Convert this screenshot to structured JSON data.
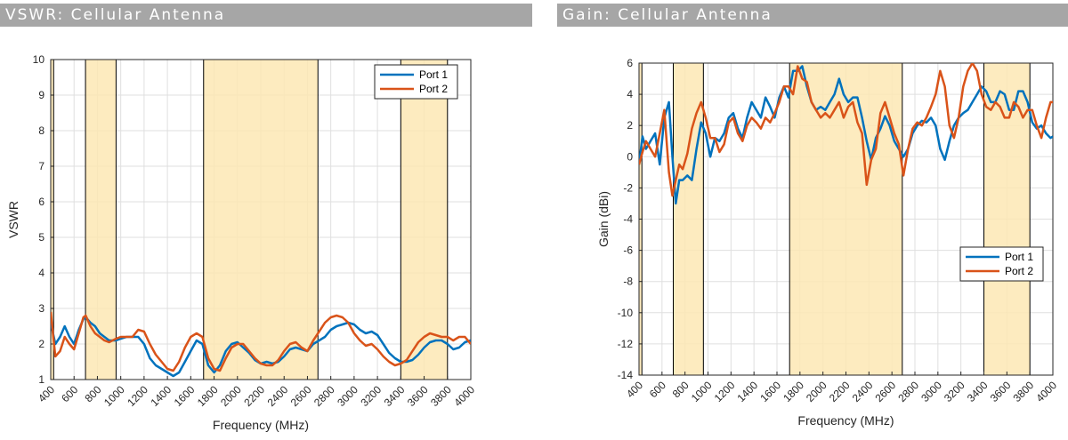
{
  "headers": {
    "left": "VSWR: Cellular Antenna",
    "right": "Gain: Cellular Antenna"
  },
  "colors": {
    "band_fill": "#fde8b4",
    "port1": "#0072bd",
    "port2": "#d95319",
    "grid": "#dfdfdf",
    "header_bg": "#a6a6a6"
  },
  "chart_data": [
    {
      "type": "line",
      "title": "VSWR: Cellular Antenna",
      "xlabel": "Frequency (MHz)",
      "ylabel": "VSWR",
      "xlim": [
        400,
        4000
      ],
      "ylim": [
        1,
        10
      ],
      "xticks": [
        400,
        600,
        800,
        1000,
        1200,
        1400,
        1600,
        1800,
        2000,
        2200,
        2400,
        2600,
        2800,
        3000,
        3200,
        3400,
        3600,
        3800,
        4000
      ],
      "yticks": [
        1,
        2,
        3,
        4,
        5,
        6,
        7,
        8,
        9,
        10
      ],
      "grid": true,
      "legend": "top-right",
      "bands": [
        [
          400,
          425
        ],
        [
          698,
          960
        ],
        [
          1710,
          2690
        ],
        [
          3400,
          3800
        ]
      ],
      "series": [
        {
          "name": "Port 1",
          "x": [
            400,
            440,
            480,
            520,
            560,
            600,
            640,
            680,
            700,
            740,
            780,
            820,
            860,
            900,
            960,
            1000,
            1050,
            1100,
            1150,
            1200,
            1250,
            1300,
            1350,
            1400,
            1450,
            1500,
            1550,
            1600,
            1650,
            1700,
            1750,
            1800,
            1850,
            1900,
            1950,
            2000,
            2050,
            2100,
            2150,
            2200,
            2250,
            2300,
            2350,
            2400,
            2450,
            2500,
            2550,
            2600,
            2650,
            2700,
            2750,
            2800,
            2850,
            2900,
            2950,
            3000,
            3050,
            3100,
            3150,
            3200,
            3250,
            3300,
            3350,
            3400,
            3450,
            3500,
            3550,
            3600,
            3650,
            3700,
            3750,
            3800,
            3850,
            3900,
            3950,
            4000
          ],
          "y": [
            2.6,
            2.0,
            2.2,
            2.5,
            2.2,
            2.0,
            2.4,
            2.7,
            2.75,
            2.6,
            2.5,
            2.3,
            2.2,
            2.1,
            2.1,
            2.15,
            2.2,
            2.2,
            2.2,
            2.0,
            1.6,
            1.4,
            1.3,
            1.2,
            1.1,
            1.2,
            1.5,
            1.8,
            2.1,
            2.0,
            1.4,
            1.2,
            1.4,
            1.8,
            2.0,
            2.05,
            1.9,
            1.75,
            1.55,
            1.45,
            1.5,
            1.45,
            1.5,
            1.65,
            1.85,
            1.9,
            1.85,
            1.8,
            2.0,
            2.1,
            2.2,
            2.4,
            2.5,
            2.55,
            2.6,
            2.55,
            2.4,
            2.3,
            2.35,
            2.25,
            2.0,
            1.75,
            1.6,
            1.5,
            1.5,
            1.55,
            1.7,
            1.9,
            2.05,
            2.1,
            2.1,
            2.0,
            1.85,
            1.9,
            2.05,
            2.1
          ]
        },
        {
          "name": "Port 2",
          "x": [
            400,
            440,
            480,
            520,
            560,
            600,
            640,
            680,
            700,
            740,
            780,
            820,
            860,
            900,
            960,
            1000,
            1050,
            1100,
            1150,
            1200,
            1250,
            1300,
            1350,
            1400,
            1450,
            1500,
            1550,
            1600,
            1650,
            1700,
            1750,
            1800,
            1850,
            1900,
            1950,
            2000,
            2050,
            2100,
            2150,
            2200,
            2250,
            2300,
            2350,
            2400,
            2450,
            2500,
            2550,
            2600,
            2650,
            2700,
            2750,
            2800,
            2850,
            2900,
            2950,
            3000,
            3050,
            3100,
            3150,
            3200,
            3250,
            3300,
            3350,
            3400,
            3450,
            3500,
            3550,
            3600,
            3650,
            3700,
            3750,
            3800,
            3850,
            3900,
            3950,
            4000
          ],
          "y": [
            2.9,
            1.65,
            1.8,
            2.2,
            2.0,
            1.85,
            2.3,
            2.75,
            2.8,
            2.5,
            2.3,
            2.2,
            2.1,
            2.05,
            2.15,
            2.2,
            2.2,
            2.2,
            2.4,
            2.35,
            2.0,
            1.7,
            1.5,
            1.3,
            1.25,
            1.5,
            1.9,
            2.2,
            2.3,
            2.2,
            1.6,
            1.3,
            1.25,
            1.6,
            1.9,
            2.0,
            2.0,
            1.8,
            1.6,
            1.45,
            1.4,
            1.4,
            1.55,
            1.8,
            2.0,
            2.05,
            1.9,
            1.8,
            2.1,
            2.35,
            2.6,
            2.75,
            2.8,
            2.75,
            2.6,
            2.3,
            2.1,
            1.95,
            2.0,
            1.85,
            1.65,
            1.5,
            1.4,
            1.45,
            1.55,
            1.8,
            2.05,
            2.2,
            2.3,
            2.25,
            2.2,
            2.2,
            2.1,
            2.2,
            2.2,
            2.0
          ]
        }
      ]
    },
    {
      "type": "line",
      "title": "Gain: Cellular Antenna",
      "xlabel": "Frequency (MHz)",
      "ylabel": "Gain (dBi)",
      "xlim": [
        400,
        4000
      ],
      "ylim": [
        -14,
        6
      ],
      "xticks": [
        400,
        600,
        800,
        1000,
        1200,
        1400,
        1600,
        1800,
        2000,
        2200,
        2400,
        2600,
        2800,
        3000,
        3200,
        3400,
        3600,
        3800,
        4000
      ],
      "yticks": [
        -14,
        -12,
        -10,
        -8,
        -6,
        -4,
        -2,
        0,
        2,
        4,
        6
      ],
      "grid": true,
      "legend": "lower-right",
      "bands": [
        [
          400,
          425
        ],
        [
          698,
          960
        ],
        [
          1710,
          2690
        ],
        [
          3400,
          3800
        ]
      ],
      "series": [
        {
          "name": "Port 1",
          "x": [
            400,
            430,
            460,
            500,
            540,
            580,
            620,
            660,
            690,
            720,
            750,
            780,
            820,
            860,
            900,
            940,
            980,
            1020,
            1060,
            1100,
            1140,
            1180,
            1220,
            1260,
            1300,
            1340,
            1380,
            1420,
            1460,
            1500,
            1540,
            1580,
            1620,
            1660,
            1700,
            1740,
            1780,
            1820,
            1860,
            1900,
            1940,
            1980,
            2020,
            2060,
            2100,
            2140,
            2180,
            2220,
            2260,
            2300,
            2340,
            2380,
            2420,
            2460,
            2500,
            2540,
            2580,
            2620,
            2660,
            2700,
            2740,
            2780,
            2820,
            2860,
            2900,
            2940,
            2980,
            3020,
            3060,
            3100,
            3140,
            3180,
            3220,
            3260,
            3300,
            3340,
            3380,
            3420,
            3460,
            3500,
            3540,
            3580,
            3620,
            3660,
            3700,
            3740,
            3780,
            3820,
            3860,
            3900,
            3940,
            3980,
            4000
          ],
          "y": [
            -0.5,
            1.3,
            0.5,
            1.0,
            1.5,
            -0.5,
            2.5,
            3.5,
            0.0,
            -3.0,
            -1.5,
            -1.5,
            -1.2,
            -1.5,
            0.5,
            2.2,
            1.5,
            0.0,
            1.2,
            1.0,
            1.5,
            2.5,
            2.8,
            1.8,
            1.2,
            2.5,
            3.5,
            3.0,
            2.5,
            3.8,
            3.2,
            2.5,
            3.8,
            4.5,
            3.8,
            5.5,
            5.5,
            5.8,
            4.5,
            3.5,
            3.0,
            3.2,
            3.0,
            3.5,
            4.0,
            5.0,
            4.0,
            3.5,
            3.8,
            3.8,
            2.5,
            1.0,
            -0.2,
            1.2,
            1.8,
            2.6,
            2.0,
            1.0,
            0.5,
            0.0,
            0.5,
            1.5,
            2.0,
            2.3,
            2.2,
            2.5,
            2.0,
            0.5,
            -0.2,
            1.0,
            2.0,
            2.5,
            2.8,
            3.0,
            3.5,
            4.0,
            4.5,
            4.2,
            3.5,
            3.5,
            4.2,
            4.0,
            3.0,
            3.0,
            4.2,
            4.2,
            3.5,
            2.2,
            1.8,
            2.0,
            1.5,
            1.2,
            1.3
          ]
        },
        {
          "name": "Port 2",
          "x": [
            400,
            430,
            460,
            500,
            540,
            580,
            620,
            660,
            690,
            720,
            750,
            780,
            820,
            860,
            900,
            940,
            980,
            1020,
            1060,
            1100,
            1140,
            1180,
            1220,
            1260,
            1300,
            1340,
            1380,
            1420,
            1460,
            1500,
            1540,
            1580,
            1620,
            1660,
            1700,
            1740,
            1780,
            1820,
            1860,
            1900,
            1940,
            1980,
            2020,
            2060,
            2100,
            2140,
            2180,
            2220,
            2260,
            2300,
            2340,
            2380,
            2420,
            2460,
            2500,
            2540,
            2580,
            2620,
            2660,
            2700,
            2740,
            2780,
            2820,
            2860,
            2900,
            2940,
            2980,
            3020,
            3060,
            3100,
            3140,
            3180,
            3220,
            3260,
            3300,
            3340,
            3380,
            3420,
            3460,
            3500,
            3540,
            3580,
            3620,
            3660,
            3700,
            3740,
            3780,
            3820,
            3860,
            3900,
            3940,
            3980,
            4000
          ],
          "y": [
            -0.5,
            0.3,
            1.0,
            0.5,
            0.0,
            1.5,
            3.0,
            -1.0,
            -2.5,
            -1.5,
            -0.5,
            -0.8,
            0.2,
            1.8,
            2.8,
            3.5,
            2.5,
            1.2,
            1.2,
            0.3,
            0.8,
            2.2,
            2.5,
            1.5,
            1.0,
            2.0,
            2.5,
            2.2,
            1.8,
            2.5,
            2.2,
            2.8,
            3.5,
            4.5,
            4.5,
            4.0,
            5.8,
            5.0,
            4.8,
            3.5,
            3.0,
            2.5,
            2.8,
            2.5,
            3.0,
            3.5,
            2.5,
            3.2,
            3.5,
            2.2,
            1.5,
            -1.8,
            -0.2,
            0.5,
            2.8,
            3.5,
            2.5,
            1.5,
            0.8,
            -1.2,
            0.5,
            1.8,
            2.2,
            2.0,
            2.5,
            3.2,
            4.0,
            5.5,
            4.5,
            2.0,
            1.2,
            2.5,
            4.5,
            5.5,
            6.0,
            5.5,
            4.0,
            3.2,
            3.0,
            3.5,
            3.2,
            2.5,
            2.5,
            3.5,
            3.2,
            2.5,
            3.0,
            3.0,
            2.0,
            1.2,
            2.5,
            3.5,
            3.5
          ]
        }
      ]
    }
  ],
  "legend": {
    "port1": "Port 1",
    "port2": "Port 2"
  }
}
